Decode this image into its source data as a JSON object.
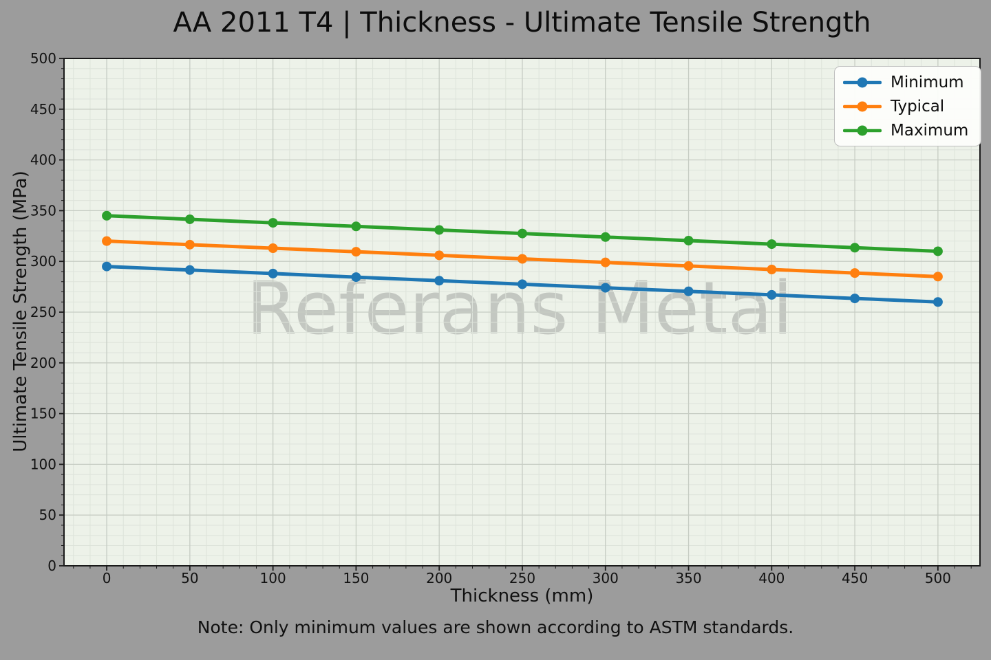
{
  "colors": {
    "figure_bg": "#9c9c9c",
    "plot_bg": "#edf2e9",
    "grid_minor": "#dde3da",
    "grid_major": "#c6ccc3",
    "spine": "#1a1a1a",
    "tick_text": "#111111",
    "watermark": "#c3c7c1",
    "legend_bg": "rgba(253,253,251,0.95)",
    "legend_border": "#bdbdbd"
  },
  "chart_data": {
    "type": "line",
    "title": "AA 2011 T4 | Thickness - Ultimate Tensile Strength",
    "xlabel": "Thickness (mm)",
    "ylabel": "Ultimate Tensile Strength (MPa)",
    "note": "Note: Only minimum values are shown according to ASTM standards.",
    "watermark": "Referans Metal",
    "x": [
      0,
      50,
      100,
      150,
      200,
      250,
      300,
      350,
      400,
      450,
      500
    ],
    "series": [
      {
        "name": "Minimum",
        "color": "#1f77b4",
        "values": [
          295,
          291.5,
          288,
          284.5,
          281,
          277.5,
          274,
          270.5,
          267,
          263.5,
          260
        ]
      },
      {
        "name": "Typical",
        "color": "#ff7f0e",
        "values": [
          320,
          316.5,
          313,
          309.5,
          306,
          302.5,
          299,
          295.5,
          292,
          288.5,
          285
        ]
      },
      {
        "name": "Maximum",
        "color": "#2ca02c",
        "values": [
          345,
          341.5,
          338,
          334.5,
          331,
          327.5,
          324,
          320.5,
          317,
          313.5,
          310
        ]
      }
    ],
    "xlim": [
      -25.7,
      525.3
    ],
    "ylim": [
      0,
      500
    ],
    "x_ticks": [
      0,
      50,
      100,
      150,
      200,
      250,
      300,
      350,
      400,
      450,
      500
    ],
    "y_ticks": [
      0,
      50,
      100,
      150,
      200,
      250,
      300,
      350,
      400,
      450,
      500
    ],
    "minor_step_x": 10,
    "minor_step_y": 10,
    "grid": "major+minor",
    "legend_position": "upper right",
    "legend_entries": [
      "Minimum",
      "Typical",
      "Maximum"
    ]
  }
}
